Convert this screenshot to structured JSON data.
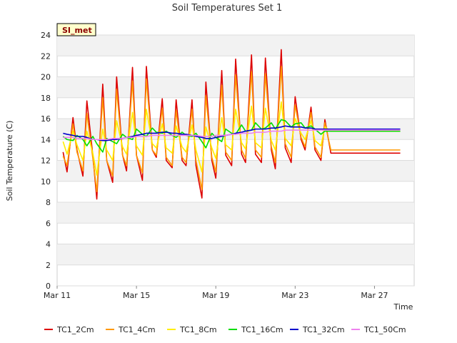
{
  "chart_data": {
    "type": "line",
    "title": "Soil Temperatures Set 1",
    "xlabel": "Time",
    "ylabel": "Soil Temperature (C)",
    "site_badge": "SI_met",
    "x_tick_labels": [
      "Mar 11",
      "Mar 15",
      "Mar 19",
      "Mar 23",
      "Mar 27"
    ],
    "x_tick_days": [
      0,
      4,
      8,
      12,
      16
    ],
    "xlim_days": [
      0,
      18
    ],
    "ylim": [
      0,
      24
    ],
    "y_ticks": [
      0,
      2,
      4,
      6,
      8,
      10,
      12,
      14,
      16,
      18,
      20,
      22,
      24
    ],
    "grid": "horizontal bands",
    "legend_position": "bottom",
    "x_unit": "days from Mar 11",
    "x": [
      0.3,
      0.5,
      0.8,
      1.0,
      1.3,
      1.5,
      1.8,
      2.0,
      2.3,
      2.5,
      2.8,
      3.0,
      3.3,
      3.5,
      3.8,
      4.0,
      4.3,
      4.5,
      4.8,
      5.0,
      5.3,
      5.5,
      5.8,
      6.0,
      6.3,
      6.5,
      6.8,
      7.0,
      7.3,
      7.5,
      7.8,
      8.0,
      8.3,
      8.5,
      8.8,
      9.0,
      9.3,
      9.5,
      9.8,
      10.0,
      10.3,
      10.5,
      10.8,
      11.0,
      11.3,
      11.5,
      11.8,
      12.0,
      12.3,
      12.5,
      12.8,
      13.0,
      13.3,
      13.5,
      13.8,
      14.0,
      14.3,
      14.5,
      14.8,
      15.0,
      15.3,
      15.5,
      15.8,
      16.0,
      16.3,
      16.5,
      16.8,
      17.0,
      17.3
    ],
    "series": [
      {
        "name": "TC1_2Cm",
        "color": "#dd0000",
        "values": [
          12.8,
          10.9,
          16.1,
          13.0,
          10.5,
          17.7,
          12.5,
          8.3,
          19.3,
          12.0,
          9.9,
          20.0,
          12.5,
          11.0,
          20.9,
          12.5,
          10.1,
          21.0,
          13.0,
          12.3,
          17.9,
          12.0,
          11.3,
          17.8,
          12.0,
          11.5,
          17.8,
          11.5,
          8.4,
          19.5,
          12.0,
          10.3,
          20.6,
          12.5,
          11.5,
          21.7,
          12.6,
          11.8,
          22.1,
          12.6,
          11.8,
          21.8,
          13.0,
          11.2,
          22.6,
          13.2,
          11.8,
          18.1,
          14.0,
          13.0,
          17.1,
          13.0,
          12.0,
          15.9,
          12.7,
          12.7,
          12.7,
          12.7,
          12.7,
          12.7,
          12.7,
          12.7,
          12.7,
          12.7,
          12.7,
          12.7,
          12.7,
          12.7,
          12.7
        ]
      },
      {
        "name": "TC1_4Cm",
        "color": "#ff9900",
        "values": [
          12.4,
          11.5,
          15.5,
          12.8,
          11.0,
          16.5,
          12.2,
          9.0,
          18.0,
          12.0,
          10.5,
          18.8,
          12.5,
          11.5,
          19.6,
          12.5,
          10.8,
          19.8,
          13.0,
          12.5,
          17.0,
          12.3,
          11.5,
          16.8,
          12.3,
          11.8,
          16.9,
          12.0,
          9.2,
          18.2,
          12.3,
          10.9,
          19.2,
          12.8,
          12.0,
          20.2,
          13.0,
          12.2,
          20.5,
          13.0,
          12.3,
          20.3,
          13.3,
          11.8,
          21.0,
          13.6,
          12.3,
          17.3,
          14.2,
          13.3,
          16.6,
          13.3,
          12.3,
          15.6,
          13.0,
          13.0,
          13.0,
          13.0,
          13.0,
          13.0,
          13.0,
          13.0,
          13.0,
          13.0,
          13.0,
          13.0,
          13.0,
          13.0,
          13.0
        ]
      },
      {
        "name": "TC1_8Cm",
        "color": "#ffee00",
        "values": [
          13.8,
          12.6,
          14.8,
          13.5,
          12.0,
          14.8,
          12.7,
          10.6,
          15.0,
          13.0,
          12.0,
          15.8,
          13.3,
          12.6,
          16.6,
          13.4,
          12.5,
          16.9,
          13.6,
          13.2,
          15.5,
          13.2,
          12.7,
          15.3,
          13.3,
          12.8,
          15.4,
          13.0,
          10.9,
          15.2,
          13.2,
          12.2,
          16.1,
          13.5,
          13.0,
          16.9,
          13.7,
          13.1,
          17.2,
          13.7,
          13.2,
          17.0,
          13.9,
          13.0,
          17.6,
          14.1,
          13.4,
          16.0,
          14.6,
          14.0,
          15.8,
          13.9,
          13.4,
          15.2,
          14.8,
          14.8,
          14.8,
          14.8,
          14.8,
          14.8,
          14.8,
          14.8,
          14.8,
          14.8,
          14.8,
          14.8,
          14.8,
          14.8,
          14.8
        ]
      },
      {
        "name": "TC1_16Cm",
        "color": "#00dd00",
        "values": [
          14.3,
          14.0,
          13.9,
          14.4,
          14.0,
          13.4,
          14.3,
          13.6,
          12.8,
          14.1,
          13.8,
          13.6,
          14.5,
          14.2,
          14.0,
          15.0,
          14.5,
          14.3,
          15.1,
          14.7,
          14.6,
          14.8,
          14.4,
          14.2,
          14.7,
          14.4,
          14.3,
          14.6,
          13.8,
          13.2,
          14.6,
          14.2,
          13.8,
          15.0,
          14.6,
          14.5,
          15.4,
          14.8,
          14.9,
          15.6,
          15.0,
          15.1,
          15.6,
          15.0,
          15.9,
          15.8,
          15.2,
          15.5,
          15.6,
          15.1,
          15.3,
          15.0,
          14.5,
          14.8,
          14.8,
          14.8,
          14.8,
          14.8,
          14.8,
          14.8,
          14.8,
          14.8,
          14.8,
          14.8,
          14.8,
          14.8,
          14.8,
          14.8,
          14.8
        ]
      },
      {
        "name": "TC1_32Cm",
        "color": "#0000cc",
        "values": [
          14.6,
          14.5,
          14.4,
          14.3,
          14.3,
          14.2,
          14.0,
          14.0,
          13.9,
          13.9,
          14.0,
          14.0,
          14.1,
          14.2,
          14.3,
          14.4,
          14.5,
          14.6,
          14.6,
          14.6,
          14.7,
          14.7,
          14.6,
          14.6,
          14.5,
          14.5,
          14.4,
          14.3,
          14.2,
          14.1,
          14.1,
          14.2,
          14.3,
          14.4,
          14.5,
          14.6,
          14.7,
          14.8,
          14.9,
          15.0,
          15.0,
          15.0,
          15.1,
          15.1,
          15.2,
          15.3,
          15.2,
          15.2,
          15.2,
          15.1,
          15.1,
          15.0,
          15.0,
          15.0,
          15.0,
          15.0,
          15.0,
          15.0,
          15.0,
          15.0,
          15.0,
          15.0,
          15.0,
          15.0,
          15.0,
          15.0,
          15.0,
          15.0,
          15.0
        ]
      },
      {
        "name": "TC1_50Cm",
        "color": "#ee82ee",
        "values": [
          14.2,
          14.2,
          14.2,
          14.1,
          14.1,
          14.1,
          14.0,
          14.0,
          14.0,
          14.0,
          14.1,
          14.1,
          14.1,
          14.2,
          14.2,
          14.3,
          14.3,
          14.3,
          14.4,
          14.4,
          14.4,
          14.4,
          14.4,
          14.4,
          14.4,
          14.4,
          14.4,
          14.4,
          14.3,
          14.3,
          14.3,
          14.4,
          14.4,
          14.4,
          14.5,
          14.5,
          14.6,
          14.6,
          14.6,
          14.7,
          14.7,
          14.7,
          14.8,
          14.8,
          14.8,
          14.9,
          14.9,
          14.9,
          14.9,
          14.9,
          14.9,
          14.9,
          14.9,
          14.9,
          14.9,
          14.9,
          14.9,
          14.9,
          14.9,
          14.9,
          14.9,
          14.9,
          14.9,
          14.9,
          14.9,
          14.9,
          14.9,
          14.9,
          14.9
        ]
      }
    ]
  }
}
